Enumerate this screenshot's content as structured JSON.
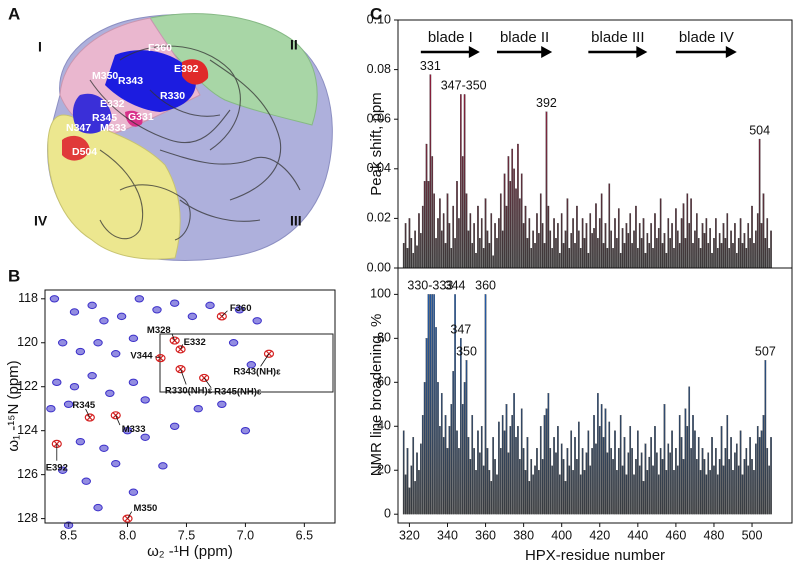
{
  "panel_labels": [
    "A",
    "B",
    "C"
  ],
  "structure": {
    "blades": [
      "I",
      "II",
      "III",
      "IV"
    ],
    "residues": [
      "F360",
      "E392",
      "M350",
      "R343",
      "E332",
      "R330",
      "G331",
      "R345",
      "N347",
      "M333",
      "D504"
    ]
  },
  "chart_data": [
    {
      "type": "scatter",
      "xlabel": "ω₂ -¹H (ppm)",
      "ylabel": "ω₁ -¹⁵N (ppm)",
      "xlim": [
        8.7,
        6.24
      ],
      "ylim": [
        128.2,
        117.6
      ],
      "xticks": [
        8.5,
        {
          "value": 8,
          "label": "8.0"
        },
        7.5,
        {
          "value": 7,
          "label": "7.0"
        },
        6.5
      ],
      "yticks": [
        118,
        120,
        122,
        124,
        126,
        128
      ],
      "color": "#3b2fc9",
      "highlight_color": "#d42020",
      "x": [
        8.62,
        8.45,
        8.3,
        8.2,
        8.05,
        7.9,
        7.75,
        7.6,
        7.45,
        7.3,
        8.55,
        8.4,
        8.25,
        8.1,
        7.95,
        8.6,
        8.45,
        8.3,
        8.15,
        7.95,
        7.85,
        8.65,
        8.5,
        8.4,
        8.2,
        8.0,
        7.85,
        7.6,
        7.4,
        7.2,
        7.0,
        6.95,
        7.1,
        8.55,
        8.35,
        8.1,
        7.95,
        7.7,
        8.25,
        8.5,
        6.9,
        7.05
      ],
      "y": [
        118.0,
        118.6,
        118.3,
        119.0,
        118.8,
        118.0,
        118.5,
        118.2,
        118.8,
        118.3,
        120.0,
        120.4,
        120.0,
        120.5,
        119.8,
        121.8,
        122.0,
        121.5,
        122.3,
        121.8,
        122.6,
        123.0,
        122.8,
        124.5,
        124.8,
        124.0,
        124.3,
        123.8,
        123.0,
        122.8,
        124.0,
        121.0,
        120.0,
        125.8,
        126.3,
        125.5,
        126.8,
        125.6,
        127.5,
        128.3,
        119.0,
        118.5
      ],
      "labeled_peaks": [
        {
          "label": "F360",
          "x": 7.2,
          "y": 118.8
        },
        {
          "label": "M328",
          "x": 7.6,
          "y": 119.9
        },
        {
          "label": "E332",
          "x": 7.55,
          "y": 120.3
        },
        {
          "label": "V344",
          "x": 7.72,
          "y": 120.7
        },
        {
          "label": "R330(NH)ε",
          "x": 7.55,
          "y": 121.2
        },
        {
          "label": "R345(NH)ε",
          "x": 7.35,
          "y": 121.6
        },
        {
          "label": "R343(NH)ε",
          "x": 6.8,
          "y": 120.5
        },
        {
          "label": "R345",
          "x": 8.32,
          "y": 123.4
        },
        {
          "label": "M333",
          "x": 8.1,
          "y": 123.3
        },
        {
          "label": "E392",
          "x": 8.6,
          "y": 124.6
        },
        {
          "label": "M350",
          "x": 8.0,
          "y": 128.0
        }
      ]
    },
    {
      "type": "bar",
      "ylabel": "Peak shift, ppm",
      "xlim": [
        314,
        521
      ],
      "ylim": [
        0,
        0.1
      ],
      "yticks": [
        {
          "value": 0,
          "label": "0.00"
        },
        0.02,
        0.04,
        0.06,
        0.08,
        {
          "value": 0.1,
          "label": "0.10"
        }
      ],
      "color": "#b0123e",
      "blades": [
        {
          "label": "blade I",
          "start": 326,
          "end": 357
        },
        {
          "label": "blade II",
          "start": 366,
          "end": 395
        },
        {
          "label": "blade III",
          "start": 414,
          "end": 445
        },
        {
          "label": "blade IV",
          "start": 460,
          "end": 492
        }
      ],
      "annotations": [
        {
          "text": "331",
          "x": 331,
          "y": 0.078
        },
        {
          "text": "347-350",
          "x": 348.5,
          "y": 0.07
        },
        {
          "text": "392",
          "x": 392,
          "y": 0.063
        },
        {
          "text": "504",
          "x": 504,
          "y": 0.052
        }
      ],
      "x": [
        317,
        318,
        319,
        320,
        321,
        322,
        323,
        324,
        325,
        326,
        327,
        328,
        329,
        330,
        331,
        332,
        333,
        334,
        335,
        336,
        337,
        338,
        339,
        340,
        341,
        342,
        343,
        344,
        345,
        346,
        347,
        348,
        349,
        350,
        351,
        352,
        353,
        354,
        355,
        356,
        357,
        358,
        359,
        360,
        361,
        362,
        363,
        364,
        365,
        366,
        367,
        368,
        369,
        370,
        371,
        372,
        373,
        374,
        375,
        376,
        377,
        378,
        379,
        380,
        381,
        382,
        383,
        384,
        385,
        386,
        387,
        388,
        389,
        390,
        391,
        392,
        393,
        394,
        395,
        396,
        397,
        398,
        399,
        400,
        401,
        402,
        403,
        404,
        405,
        406,
        407,
        408,
        409,
        410,
        411,
        412,
        413,
        414,
        415,
        416,
        417,
        418,
        419,
        420,
        421,
        422,
        423,
        424,
        425,
        426,
        427,
        428,
        429,
        430,
        431,
        432,
        433,
        434,
        435,
        436,
        437,
        438,
        439,
        440,
        441,
        442,
        443,
        444,
        445,
        446,
        447,
        448,
        449,
        450,
        451,
        452,
        453,
        454,
        455,
        456,
        457,
        458,
        459,
        460,
        461,
        462,
        463,
        464,
        465,
        466,
        467,
        468,
        469,
        470,
        471,
        472,
        473,
        474,
        475,
        476,
        477,
        478,
        479,
        480,
        481,
        482,
        483,
        484,
        485,
        486,
        487,
        488,
        489,
        490,
        491,
        492,
        493,
        494,
        495,
        496,
        497,
        498,
        499,
        500,
        501,
        502,
        503,
        504,
        505,
        506,
        507,
        508,
        509,
        510
      ],
      "values": [
        0.01,
        0.018,
        0.008,
        0.02,
        0.012,
        0.006,
        0.015,
        0.009,
        0.022,
        0.014,
        0.025,
        0.035,
        0.05,
        0.035,
        0.078,
        0.045,
        0.03,
        0.012,
        0.02,
        0.028,
        0.015,
        0.022,
        0.01,
        0.03,
        0.018,
        0.008,
        0.025,
        0.012,
        0.035,
        0.02,
        0.07,
        0.045,
        0.07,
        0.03,
        0.015,
        0.022,
        0.01,
        0.018,
        0.006,
        0.025,
        0.012,
        0.02,
        0.008,
        0.028,
        0.015,
        0.01,
        0.022,
        0.005,
        0.018,
        0.012,
        0.02,
        0.03,
        0.015,
        0.038,
        0.025,
        0.045,
        0.035,
        0.048,
        0.04,
        0.032,
        0.05,
        0.028,
        0.038,
        0.018,
        0.025,
        0.012,
        0.02,
        0.008,
        0.015,
        0.01,
        0.022,
        0.014,
        0.03,
        0.018,
        0.01,
        0.063,
        0.025,
        0.015,
        0.008,
        0.02,
        0.012,
        0.018,
        0.006,
        0.022,
        0.01,
        0.015,
        0.028,
        0.008,
        0.014,
        0.02,
        0.01,
        0.025,
        0.015,
        0.008,
        0.02,
        0.012,
        0.018,
        0.006,
        0.022,
        0.014,
        0.016,
        0.026,
        0.012,
        0.02,
        0.03,
        0.01,
        0.018,
        0.008,
        0.034,
        0.015,
        0.008,
        0.02,
        0.012,
        0.024,
        0.006,
        0.016,
        0.01,
        0.018,
        0.014,
        0.022,
        0.01,
        0.015,
        0.025,
        0.008,
        0.018,
        0.012,
        0.02,
        0.006,
        0.014,
        0.01,
        0.018,
        0.008,
        0.022,
        0.012,
        0.016,
        0.028,
        0.01,
        0.014,
        0.006,
        0.02,
        0.012,
        0.018,
        0.008,
        0.024,
        0.015,
        0.01,
        0.02,
        0.026,
        0.012,
        0.03,
        0.018,
        0.028,
        0.01,
        0.015,
        0.022,
        0.012,
        0.008,
        0.018,
        0.014,
        0.02,
        0.01,
        0.016,
        0.006,
        0.012,
        0.02,
        0.008,
        0.014,
        0.01,
        0.018,
        0.012,
        0.022,
        0.008,
        0.015,
        0.01,
        0.018,
        0.006,
        0.012,
        0.02,
        0.01,
        0.014,
        0.008,
        0.018,
        0.012,
        0.025,
        0.01,
        0.015,
        0.022,
        0.052,
        0.018,
        0.03,
        0.012,
        0.02,
        0.008,
        0.015
      ]
    },
    {
      "type": "bar",
      "ylabel": "NMR line broadening, %",
      "xlabel": "HPX-residue number",
      "xlim": [
        314,
        521
      ],
      "ylim": [
        -4,
        112
      ],
      "xticks": [
        320,
        340,
        360,
        380,
        400,
        420,
        440,
        460,
        480,
        500
      ],
      "yticks": [
        0,
        20,
        40,
        60,
        80,
        100
      ],
      "color": "#1f5fb8",
      "annotations": [
        {
          "text": "330-333",
          "x": 331,
          "y": 100
        },
        {
          "text": "344",
          "x": 344,
          "y": 100
        },
        {
          "text": "360",
          "x": 360,
          "y": 100
        },
        {
          "text": "347",
          "x": 347,
          "y": 80
        },
        {
          "text": "350",
          "x": 350,
          "y": 70
        },
        {
          "text": "507",
          "x": 507,
          "y": 70
        }
      ],
      "x": [
        317,
        318,
        319,
        320,
        321,
        322,
        323,
        324,
        325,
        326,
        327,
        328,
        329,
        330,
        331,
        332,
        333,
        334,
        335,
        336,
        337,
        338,
        339,
        340,
        341,
        342,
        343,
        344,
        345,
        346,
        347,
        348,
        349,
        350,
        351,
        352,
        353,
        354,
        355,
        356,
        357,
        358,
        359,
        360,
        361,
        362,
        363,
        364,
        365,
        366,
        367,
        368,
        369,
        370,
        371,
        372,
        373,
        374,
        375,
        376,
        377,
        378,
        379,
        380,
        381,
        382,
        383,
        384,
        385,
        386,
        387,
        388,
        389,
        390,
        391,
        392,
        393,
        394,
        395,
        396,
        397,
        398,
        399,
        400,
        401,
        402,
        403,
        404,
        405,
        406,
        407,
        408,
        409,
        410,
        411,
        412,
        413,
        414,
        415,
        416,
        417,
        418,
        419,
        420,
        421,
        422,
        423,
        424,
        425,
        426,
        427,
        428,
        429,
        430,
        431,
        432,
        433,
        434,
        435,
        436,
        437,
        438,
        439,
        440,
        441,
        442,
        443,
        444,
        445,
        446,
        447,
        448,
        449,
        450,
        451,
        452,
        453,
        454,
        455,
        456,
        457,
        458,
        459,
        460,
        461,
        462,
        463,
        464,
        465,
        466,
        467,
        468,
        469,
        470,
        471,
        472,
        473,
        474,
        475,
        476,
        477,
        478,
        479,
        480,
        481,
        482,
        483,
        484,
        485,
        486,
        487,
        488,
        489,
        490,
        491,
        492,
        493,
        494,
        495,
        496,
        497,
        498,
        499,
        500,
        501,
        502,
        503,
        504,
        505,
        506,
        507,
        508,
        509,
        510
      ],
      "values": [
        38,
        18,
        30,
        12,
        22,
        35,
        15,
        28,
        20,
        32,
        45,
        60,
        80,
        100,
        100,
        100,
        100,
        85,
        60,
        40,
        55,
        35,
        45,
        30,
        40,
        50,
        65,
        100,
        38,
        30,
        80,
        50,
        60,
        70,
        35,
        25,
        45,
        30,
        20,
        38,
        28,
        40,
        22,
        100,
        30,
        20,
        15,
        35,
        25,
        18,
        42,
        30,
        45,
        38,
        50,
        28,
        40,
        45,
        55,
        35,
        40,
        25,
        48,
        30,
        20,
        35,
        15,
        25,
        18,
        22,
        30,
        20,
        40,
        25,
        45,
        48,
        55,
        30,
        22,
        35,
        28,
        40,
        18,
        32,
        25,
        15,
        30,
        22,
        38,
        20,
        35,
        25,
        42,
        18,
        30,
        20,
        28,
        38,
        22,
        30,
        45,
        32,
        55,
        40,
        50,
        35,
        48,
        28,
        42,
        30,
        25,
        38,
        20,
        30,
        45,
        22,
        35,
        18,
        28,
        40,
        30,
        18,
        25,
        38,
        22,
        28,
        15,
        32,
        20,
        26,
        35,
        22,
        40,
        28,
        18,
        30,
        25,
        50,
        20,
        32,
        28,
        38,
        20,
        30,
        22,
        45,
        35,
        25,
        48,
        40,
        58,
        30,
        45,
        38,
        25,
        35,
        20,
        30,
        25,
        18,
        28,
        20,
        35,
        22,
        30,
        18,
        25,
        40,
        22,
        30,
        45,
        25,
        35,
        20,
        28,
        32,
        22,
        38,
        18,
        25,
        30,
        22,
        35,
        25,
        20,
        32,
        40,
        35,
        38,
        45,
        70,
        30,
        22,
        35
      ]
    }
  ]
}
